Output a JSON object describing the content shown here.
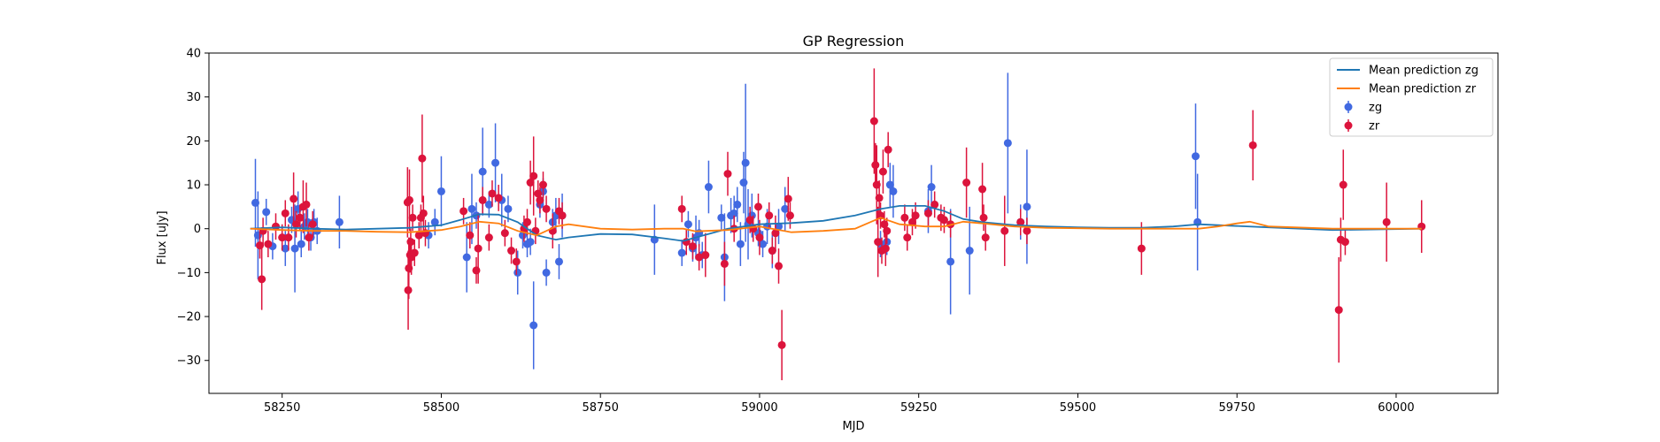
{
  "chart_data": {
    "type": "scatter",
    "title": "GP Regression",
    "xlabel": "MJD",
    "ylabel": "Flux [uJy]",
    "xlim": [
      58135,
      60160
    ],
    "ylim": [
      -37.5,
      40
    ],
    "xticks": [
      58250,
      58500,
      58750,
      59000,
      59250,
      59500,
      59750,
      60000
    ],
    "yticks": [
      -30,
      -20,
      -10,
      0,
      10,
      20,
      30,
      40
    ],
    "legend_position": "top-right",
    "colors": {
      "zg_line": "#1f77b4",
      "zr_line": "#ff7f0e",
      "zg_points": "#4169e1",
      "zr_points": "#dc143c"
    },
    "lines": [
      {
        "name": "Mean prediction zg",
        "color": "#1f77b4",
        "x": [
          58200,
          58250,
          58300,
          58350,
          58400,
          58450,
          58500,
          58530,
          58560,
          58590,
          58620,
          58650,
          58680,
          58700,
          58750,
          58800,
          58850,
          58880,
          58900,
          58950,
          59000,
          59050,
          59100,
          59150,
          59190,
          59220,
          59260,
          59290,
          59320,
          59350,
          59400,
          59450,
          59500,
          59550,
          59600,
          59650,
          59690,
          59720,
          59800,
          59900,
          60040
        ],
        "y": [
          0,
          0.3,
          0,
          -0.2,
          0,
          0.2,
          0.8,
          2,
          3.3,
          3.2,
          1.5,
          -1.5,
          -2.5,
          -2,
          -1.2,
          -1.3,
          -2.2,
          -2.8,
          -2,
          0,
          1,
          1.3,
          1.8,
          3,
          4.5,
          5.2,
          5.2,
          4,
          2.2,
          1.5,
          0.8,
          0.5,
          0.3,
          0.2,
          0.2,
          0.5,
          1,
          0.8,
          0.3,
          -0.3,
          0
        ]
      },
      {
        "name": "Mean prediction zr",
        "color": "#ff7f0e",
        "x": [
          58200,
          58250,
          58300,
          58350,
          58400,
          58450,
          58500,
          58530,
          58560,
          58590,
          58620,
          58650,
          58680,
          58700,
          58750,
          58800,
          58850,
          58880,
          58900,
          58950,
          59000,
          59050,
          59100,
          59150,
          59190,
          59220,
          59260,
          59290,
          59320,
          59350,
          59400,
          59450,
          59500,
          59550,
          59600,
          59650,
          59690,
          59720,
          59750,
          59770,
          59800,
          59900,
          60040
        ],
        "y": [
          0,
          -0.3,
          -0.5,
          -0.5,
          -0.7,
          -0.8,
          -0.3,
          0.5,
          1.6,
          1.2,
          -0.5,
          -1.5,
          0.5,
          1,
          0,
          -0.2,
          0,
          0,
          -0.6,
          -0.3,
          0.5,
          -0.8,
          -0.5,
          0,
          2.5,
          1,
          0.5,
          0.5,
          1.6,
          1.2,
          0.5,
          0.2,
          0.1,
          0,
          0,
          0,
          0,
          0.5,
          1.2,
          1.6,
          0.5,
          0,
          0
        ]
      }
    ],
    "series": [
      {
        "name": "zg",
        "color": "#4169e1",
        "points": [
          [
            58208,
            5.9,
            10
          ],
          [
            58212,
            -1.5,
            10
          ],
          [
            58225,
            3.8,
            3
          ],
          [
            58235,
            -4,
            3
          ],
          [
            58255,
            -4.5,
            4
          ],
          [
            58265,
            2,
            3
          ],
          [
            58270,
            -4.5,
            10
          ],
          [
            58275,
            4.5,
            4
          ],
          [
            58280,
            -3.5,
            3
          ],
          [
            58285,
            0.5,
            3
          ],
          [
            58290,
            1.5,
            3
          ],
          [
            58295,
            -2,
            3
          ],
          [
            58300,
            1.5,
            3
          ],
          [
            58305,
            -0.5,
            3
          ],
          [
            58340,
            1.5,
            6
          ],
          [
            58480,
            -1.5,
            3
          ],
          [
            58490,
            1.5,
            3
          ],
          [
            58500,
            8.5,
            8
          ],
          [
            58540,
            -6.5,
            8
          ],
          [
            58548,
            4.5,
            8
          ],
          [
            58555,
            3,
            3
          ],
          [
            58565,
            13,
            10
          ],
          [
            58575,
            5.5,
            3
          ],
          [
            58585,
            15,
            9
          ],
          [
            58595,
            6.5,
            6
          ],
          [
            58605,
            4.5,
            3
          ],
          [
            58620,
            -10,
            5
          ],
          [
            58628,
            -1.5,
            3
          ],
          [
            58635,
            -3.5,
            3
          ],
          [
            58640,
            -3,
            3
          ],
          [
            58645,
            -22,
            10
          ],
          [
            58655,
            5.5,
            3
          ],
          [
            58660,
            8.5,
            3
          ],
          [
            58665,
            -10,
            3
          ],
          [
            58675,
            1.5,
            3
          ],
          [
            58680,
            3,
            4
          ],
          [
            58685,
            -7.5,
            4
          ],
          [
            58690,
            3,
            5
          ],
          [
            58835,
            -2.5,
            8
          ],
          [
            58878,
            -5.5,
            3
          ],
          [
            58888,
            1,
            3
          ],
          [
            58895,
            -4.5,
            3
          ],
          [
            58900,
            -2,
            5
          ],
          [
            58905,
            -1,
            3
          ],
          [
            58910,
            -6,
            3
          ],
          [
            58920,
            9.5,
            6
          ],
          [
            58940,
            2.5,
            3
          ],
          [
            58945,
            -6.5,
            10
          ],
          [
            58955,
            3,
            4
          ],
          [
            58960,
            3.5,
            4
          ],
          [
            58965,
            5.5,
            4
          ],
          [
            58970,
            -3.5,
            5
          ],
          [
            58975,
            10.5,
            7
          ],
          [
            58978,
            15,
            18
          ],
          [
            58982,
            1,
            8
          ],
          [
            58988,
            3,
            5
          ],
          [
            58998,
            -1,
            3
          ],
          [
            59005,
            -3.5,
            3
          ],
          [
            59012,
            0.5,
            4
          ],
          [
            59020,
            -5,
            4
          ],
          [
            59030,
            0.5,
            4
          ],
          [
            59040,
            4.5,
            5
          ],
          [
            59190,
            -3.5,
            3
          ],
          [
            59200,
            -3,
            3
          ],
          [
            59205,
            10,
            5
          ],
          [
            59210,
            8.5,
            6
          ],
          [
            59265,
            4,
            5
          ],
          [
            59270,
            9.5,
            5
          ],
          [
            59300,
            -7.5,
            12
          ],
          [
            59330,
            -5,
            10
          ],
          [
            59390,
            19.5,
            16
          ],
          [
            59410,
            1.5,
            4
          ],
          [
            59420,
            5,
            13
          ],
          [
            59685,
            16.5,
            12
          ],
          [
            59688,
            1.5,
            11
          ]
        ]
      },
      {
        "name": "zr",
        "color": "#dc143c",
        "points": [
          [
            58215,
            -3.8,
            3
          ],
          [
            58218,
            -11.5,
            7
          ],
          [
            58220,
            -0.5,
            3
          ],
          [
            58228,
            -3.5,
            3
          ],
          [
            58240,
            0.5,
            3
          ],
          [
            58250,
            -2,
            3
          ],
          [
            58255,
            3.5,
            3
          ],
          [
            58260,
            -2,
            3
          ],
          [
            58268,
            6.8,
            6
          ],
          [
            58272,
            1,
            3
          ],
          [
            58278,
            2.5,
            3
          ],
          [
            58283,
            5,
            6
          ],
          [
            58288,
            5.5,
            5
          ],
          [
            58292,
            -2,
            3
          ],
          [
            58298,
            1,
            3
          ],
          [
            58447,
            6,
            8
          ],
          [
            58448,
            -14,
            9
          ],
          [
            58449,
            -9,
            7
          ],
          [
            58450,
            6.5,
            7
          ],
          [
            58451,
            -6,
            4
          ],
          [
            58452,
            -3,
            3
          ],
          [
            58453,
            -6.5,
            4
          ],
          [
            58455,
            2.5,
            3
          ],
          [
            58458,
            -5.5,
            3
          ],
          [
            58465,
            -1.5,
            3
          ],
          [
            58468,
            2.5,
            3
          ],
          [
            58470,
            16,
            10
          ],
          [
            58472,
            3.5,
            4
          ],
          [
            58475,
            -1,
            3
          ],
          [
            58535,
            4,
            3
          ],
          [
            58545,
            -1.5,
            3
          ],
          [
            58555,
            -9.5,
            3
          ],
          [
            58558,
            -4.5,
            8
          ],
          [
            58565,
            6.5,
            3
          ],
          [
            58575,
            -2,
            3
          ],
          [
            58580,
            8,
            3
          ],
          [
            58590,
            7,
            3
          ],
          [
            58600,
            -1,
            3
          ],
          [
            58610,
            -5,
            3
          ],
          [
            58618,
            -7.5,
            3
          ],
          [
            58630,
            0,
            3
          ],
          [
            58635,
            1.5,
            3
          ],
          [
            58640,
            10.5,
            5
          ],
          [
            58645,
            12,
            9
          ],
          [
            58648,
            -0.5,
            3
          ],
          [
            58652,
            8,
            3
          ],
          [
            58655,
            6.5,
            3
          ],
          [
            58660,
            10,
            3
          ],
          [
            58665,
            4.5,
            3
          ],
          [
            58675,
            -0.5,
            4
          ],
          [
            58685,
            4,
            3
          ],
          [
            58690,
            3,
            3
          ],
          [
            58878,
            4.5,
            3
          ],
          [
            58885,
            -3,
            3
          ],
          [
            58895,
            -4,
            3
          ],
          [
            58905,
            -6.5,
            3
          ],
          [
            58915,
            -6,
            5
          ],
          [
            58945,
            -8,
            5
          ],
          [
            58950,
            12.5,
            5
          ],
          [
            58960,
            0,
            3
          ],
          [
            58985,
            2,
            3
          ],
          [
            58990,
            0,
            3
          ],
          [
            58998,
            5,
            3
          ],
          [
            59000,
            -2,
            4
          ],
          [
            59015,
            3,
            3
          ],
          [
            59020,
            -5,
            3
          ],
          [
            59025,
            -1,
            4
          ],
          [
            59030,
            -8.5,
            4
          ],
          [
            59035,
            -26.5,
            8
          ],
          [
            59045,
            6.8,
            5
          ],
          [
            59048,
            3,
            3
          ],
          [
            59180,
            24.5,
            12
          ],
          [
            59182,
            14.5,
            5
          ],
          [
            59184,
            10,
            9
          ],
          [
            59186,
            -3,
            8
          ],
          [
            59188,
            7,
            4
          ],
          [
            59190,
            3,
            3
          ],
          [
            59192,
            -5,
            3
          ],
          [
            59194,
            13,
            5
          ],
          [
            59196,
            1,
            3
          ],
          [
            59198,
            -4.5,
            4
          ],
          [
            59200,
            -0.5,
            3
          ],
          [
            59202,
            18,
            4
          ],
          [
            59228,
            2.5,
            3
          ],
          [
            59232,
            -2,
            3
          ],
          [
            59240,
            1.5,
            3
          ],
          [
            59245,
            3,
            3
          ],
          [
            59265,
            3.5,
            3
          ],
          [
            59275,
            5.5,
            3
          ],
          [
            59285,
            2.5,
            3
          ],
          [
            59290,
            2,
            3
          ],
          [
            59300,
            1,
            3
          ],
          [
            59325,
            10.5,
            8
          ],
          [
            59350,
            9,
            6
          ],
          [
            59352,
            2.5,
            3
          ],
          [
            59355,
            -2,
            3
          ],
          [
            59385,
            -0.5,
            8
          ],
          [
            59410,
            1.5,
            3
          ],
          [
            59420,
            -0.5,
            3
          ],
          [
            59600,
            -4.5,
            6
          ],
          [
            59775,
            19,
            8
          ],
          [
            59910,
            -18.5,
            12
          ],
          [
            59913,
            -2.5,
            5
          ],
          [
            59917,
            10,
            8
          ],
          [
            59920,
            -3,
            3
          ],
          [
            59985,
            1.5,
            9
          ],
          [
            60040,
            0.5,
            6
          ]
        ]
      }
    ]
  }
}
